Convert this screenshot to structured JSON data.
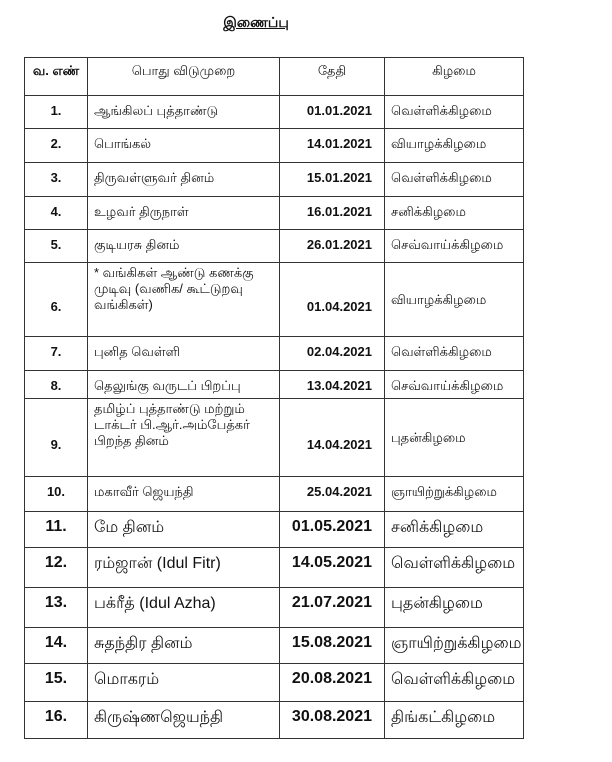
{
  "title": "இணைப்பு",
  "headers": [
    "வ. எண்",
    "பொது விடுமுறை",
    "தேதி",
    "கிழமை"
  ],
  "rows": [
    {
      "no": "1.",
      "holiday": "ஆங்கிலப் புத்தாண்டு",
      "date": "01.01.2021",
      "day": "வெள்ளிக்கிழமை"
    },
    {
      "no": "2.",
      "holiday": "பொங்கல்",
      "date": "14.01.2021",
      "day": "வியாழக்கிழமை"
    },
    {
      "no": "3.",
      "holiday": "திருவள்ளுவர் தினம்",
      "date": "15.01.2021",
      "day": "வெள்ளிக்கிழமை"
    },
    {
      "no": "4.",
      "holiday": "உழவர் திருநாள்",
      "date": "16.01.2021",
      "day": "சனிக்கிழமை"
    },
    {
      "no": "5.",
      "holiday": "குடியரசு தினம்",
      "date": "26.01.2021",
      "day": "செவ்வாய்க்கிழமை"
    },
    {
      "no": "6.",
      "holiday": "* வங்கிகள் ஆண்டு கணக்கு முடிவு (வணிக/ கூட்டுறவு வங்கிகள்)",
      "date": "01.04.2021",
      "day": "வியாழக்கிழமை"
    },
    {
      "no": "7.",
      "holiday": "புனித வெள்ளி",
      "date": "02.04.2021",
      "day": "வெள்ளிக்கிழமை"
    },
    {
      "no": "8.",
      "holiday": "தெலுங்கு வருடப் பிறப்பு",
      "date": "13.04.2021",
      "day": "செவ்வாய்க்கிழமை"
    },
    {
      "no": "9.",
      "holiday": "தமிழ்ப் புத்தாண்டு மற்றும் டாக்டர் பி.ஆர்.அம்பேத்கர் பிறந்த தினம்",
      "date": "14.04.2021",
      "day": "புதன்கிழமை"
    },
    {
      "no": "10.",
      "holiday": "மகாவீர் ஜெயந்தி",
      "date": "25.04.2021",
      "day": "ஞாயிற்றுக்கிழமை"
    },
    {
      "no": "11.",
      "holiday": "மே தினம்",
      "date": "01.05.2021",
      "day": "சனிக்கிழமை"
    },
    {
      "no": "12.",
      "holiday": "ரம்ஜான் (Idul Fitr)",
      "date": "14.05.2021",
      "day": "வெள்ளிக்கிழமை"
    },
    {
      "no": "13.",
      "holiday": "பக்ரீத் (Idul Azha)",
      "date": "21.07.2021",
      "day": "புதன்கிழமை"
    },
    {
      "no": "14.",
      "holiday": "சுதந்திர தினம்",
      "date": "15.08.2021",
      "day": "ஞாயிற்றுக்கிழமை"
    },
    {
      "no": "15.",
      "holiday": "மொகரம்",
      "date": "20.08.2021",
      "day": "வெள்ளிக்கிழமை"
    },
    {
      "no": "16.",
      "holiday": "கிருஷ்ணஜெயந்தி",
      "date": "30.08.2021",
      "day": "திங்கட்கிழமை"
    }
  ]
}
